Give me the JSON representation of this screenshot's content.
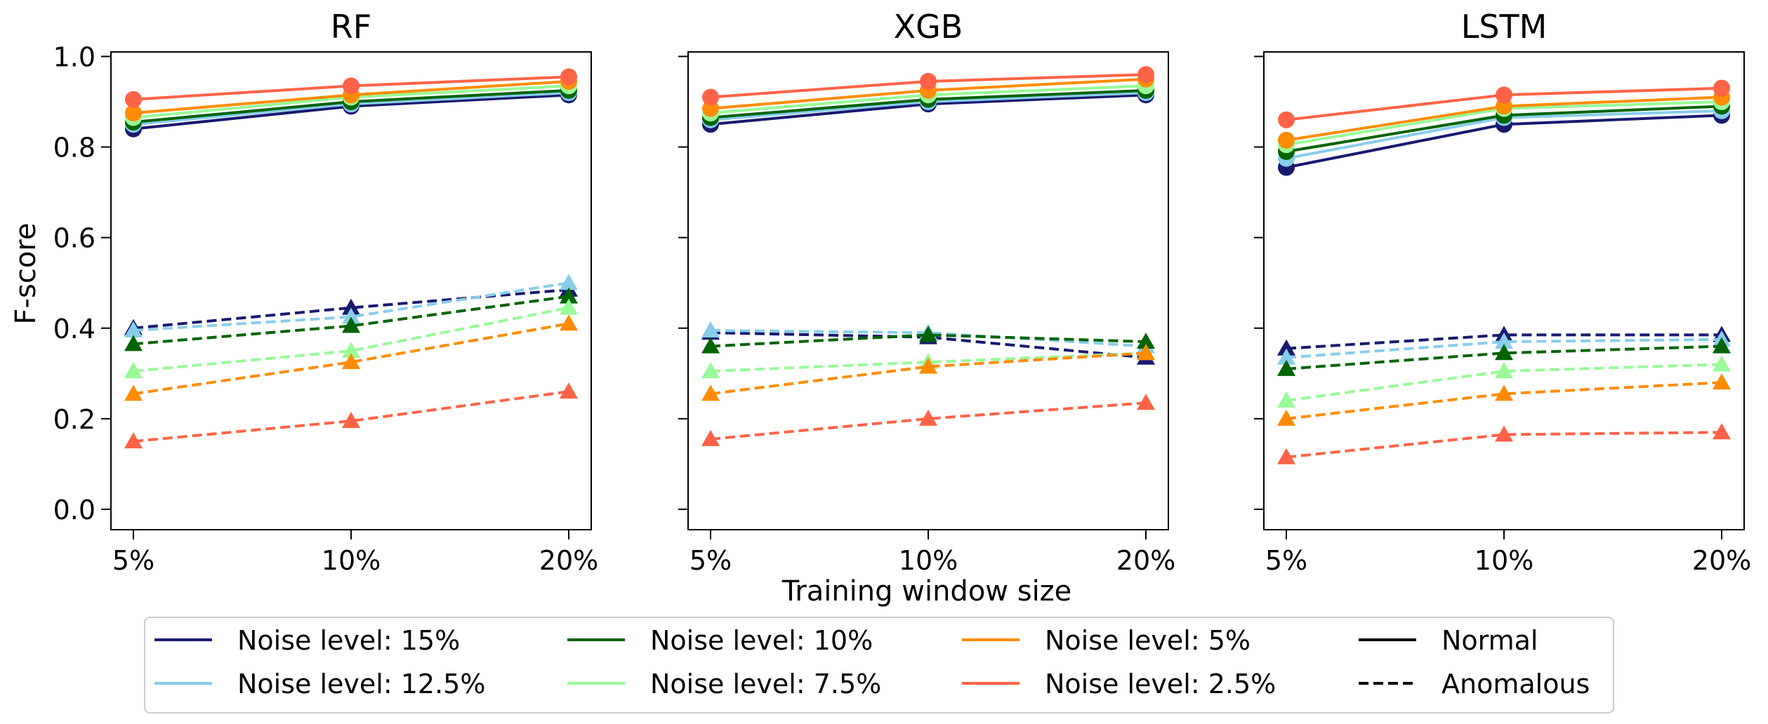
{
  "figure": {
    "xlabel": "Training window size",
    "ylabel": "F-score"
  },
  "colors": {
    "Noise level: 15%": "#191970",
    "Noise level: 12.5%": "#87ceeb",
    "Noise level: 10%": "#006400",
    "Noise level: 7.5%": "#98fb98",
    "Noise level: 5%": "#ff8c00",
    "Noise level: 2.5%": "#ff6347"
  },
  "chart_data": [
    {
      "type": "line",
      "title": "RF",
      "categories": [
        "5%",
        "10%",
        "20%"
      ],
      "yticks": [
        "0.0",
        "0.2",
        "0.4",
        "0.6",
        "0.8",
        "1.0"
      ],
      "ylim": [
        -0.045,
        1.01
      ],
      "series": [
        {
          "name": "Noise level: 15%",
          "kind": "Normal",
          "values": [
            0.84,
            0.89,
            0.915
          ]
        },
        {
          "name": "Noise level: 12.5%",
          "kind": "Normal",
          "values": [
            0.85,
            0.895,
            0.92
          ]
        },
        {
          "name": "Noise level: 10%",
          "kind": "Normal",
          "values": [
            0.855,
            0.9,
            0.925
          ]
        },
        {
          "name": "Noise level: 7.5%",
          "kind": "Normal",
          "values": [
            0.865,
            0.91,
            0.935
          ]
        },
        {
          "name": "Noise level: 5%",
          "kind": "Normal",
          "values": [
            0.875,
            0.915,
            0.945
          ]
        },
        {
          "name": "Noise level: 2.5%",
          "kind": "Normal",
          "values": [
            0.905,
            0.935,
            0.955
          ]
        },
        {
          "name": "Noise level: 15%",
          "kind": "Anomalous",
          "values": [
            0.4,
            0.445,
            0.485
          ]
        },
        {
          "name": "Noise level: 12.5%",
          "kind": "Anomalous",
          "values": [
            0.395,
            0.425,
            0.5
          ]
        },
        {
          "name": "Noise level: 10%",
          "kind": "Anomalous",
          "values": [
            0.365,
            0.405,
            0.47
          ]
        },
        {
          "name": "Noise level: 7.5%",
          "kind": "Anomalous",
          "values": [
            0.305,
            0.35,
            0.445
          ]
        },
        {
          "name": "Noise level: 5%",
          "kind": "Anomalous",
          "values": [
            0.255,
            0.325,
            0.41
          ]
        },
        {
          "name": "Noise level: 2.5%",
          "kind": "Anomalous",
          "values": [
            0.15,
            0.195,
            0.26
          ]
        }
      ]
    },
    {
      "type": "line",
      "title": "XGB",
      "categories": [
        "5%",
        "10%",
        "20%"
      ],
      "yticks": [
        "0.0",
        "0.2",
        "0.4",
        "0.6",
        "0.8",
        "1.0"
      ],
      "ylim": [
        -0.045,
        1.01
      ],
      "series": [
        {
          "name": "Noise level: 15%",
          "kind": "Normal",
          "values": [
            0.85,
            0.895,
            0.915
          ]
        },
        {
          "name": "Noise level: 12.5%",
          "kind": "Normal",
          "values": [
            0.86,
            0.9,
            0.92
          ]
        },
        {
          "name": "Noise level: 10%",
          "kind": "Normal",
          "values": [
            0.865,
            0.905,
            0.925
          ]
        },
        {
          "name": "Noise level: 7.5%",
          "kind": "Normal",
          "values": [
            0.875,
            0.915,
            0.935
          ]
        },
        {
          "name": "Noise level: 5%",
          "kind": "Normal",
          "values": [
            0.885,
            0.925,
            0.95
          ]
        },
        {
          "name": "Noise level: 2.5%",
          "kind": "Normal",
          "values": [
            0.91,
            0.945,
            0.96
          ]
        },
        {
          "name": "Noise level: 15%",
          "kind": "Anomalous",
          "values": [
            0.39,
            0.38,
            0.335
          ]
        },
        {
          "name": "Noise level: 12.5%",
          "kind": "Anomalous",
          "values": [
            0.395,
            0.39,
            0.36
          ]
        },
        {
          "name": "Noise level: 10%",
          "kind": "Anomalous",
          "values": [
            0.36,
            0.385,
            0.37
          ]
        },
        {
          "name": "Noise level: 7.5%",
          "kind": "Anomalous",
          "values": [
            0.305,
            0.325,
            0.345
          ]
        },
        {
          "name": "Noise level: 5%",
          "kind": "Anomalous",
          "values": [
            0.255,
            0.315,
            0.345
          ]
        },
        {
          "name": "Noise level: 2.5%",
          "kind": "Anomalous",
          "values": [
            0.155,
            0.2,
            0.235
          ]
        }
      ]
    },
    {
      "type": "line",
      "title": "LSTM",
      "categories": [
        "5%",
        "10%",
        "20%"
      ],
      "yticks": [
        "0.0",
        "0.2",
        "0.4",
        "0.6",
        "0.8",
        "1.0"
      ],
      "ylim": [
        -0.045,
        1.01
      ],
      "series": [
        {
          "name": "Noise level: 15%",
          "kind": "Normal",
          "values": [
            0.755,
            0.85,
            0.87
          ]
        },
        {
          "name": "Noise level: 12.5%",
          "kind": "Normal",
          "values": [
            0.775,
            0.865,
            0.88
          ]
        },
        {
          "name": "Noise level: 10%",
          "kind": "Normal",
          "values": [
            0.79,
            0.87,
            0.89
          ]
        },
        {
          "name": "Noise level: 7.5%",
          "kind": "Normal",
          "values": [
            0.805,
            0.885,
            0.9
          ]
        },
        {
          "name": "Noise level: 5%",
          "kind": "Normal",
          "values": [
            0.815,
            0.89,
            0.91
          ]
        },
        {
          "name": "Noise level: 2.5%",
          "kind": "Normal",
          "values": [
            0.86,
            0.915,
            0.93
          ]
        },
        {
          "name": "Noise level: 15%",
          "kind": "Anomalous",
          "values": [
            0.355,
            0.385,
            0.385
          ]
        },
        {
          "name": "Noise level: 12.5%",
          "kind": "Anomalous",
          "values": [
            0.335,
            0.37,
            0.375
          ]
        },
        {
          "name": "Noise level: 10%",
          "kind": "Anomalous",
          "values": [
            0.31,
            0.345,
            0.36
          ]
        },
        {
          "name": "Noise level: 7.5%",
          "kind": "Anomalous",
          "values": [
            0.24,
            0.305,
            0.32
          ]
        },
        {
          "name": "Noise level: 5%",
          "kind": "Anomalous",
          "values": [
            0.2,
            0.255,
            0.28
          ]
        },
        {
          "name": "Noise level: 2.5%",
          "kind": "Anomalous",
          "values": [
            0.115,
            0.165,
            0.17
          ]
        }
      ]
    }
  ],
  "legend": {
    "location": "bottom",
    "entries": [
      {
        "label": "Noise level: 15%",
        "style": "solid",
        "color": "#191970"
      },
      {
        "label": "Noise level: 12.5%",
        "style": "solid",
        "color": "#87ceeb"
      },
      {
        "label": "Noise level: 10%",
        "style": "solid",
        "color": "#006400"
      },
      {
        "label": "Noise level: 7.5%",
        "style": "solid",
        "color": "#98fb98"
      },
      {
        "label": "Noise level: 5%",
        "style": "solid",
        "color": "#ff8c00"
      },
      {
        "label": "Noise level: 2.5%",
        "style": "solid",
        "color": "#ff6347"
      },
      {
        "label": "Normal",
        "style": "solid",
        "color": "#000000"
      },
      {
        "label": "Anomalous",
        "style": "dashed",
        "color": "#000000"
      }
    ]
  }
}
